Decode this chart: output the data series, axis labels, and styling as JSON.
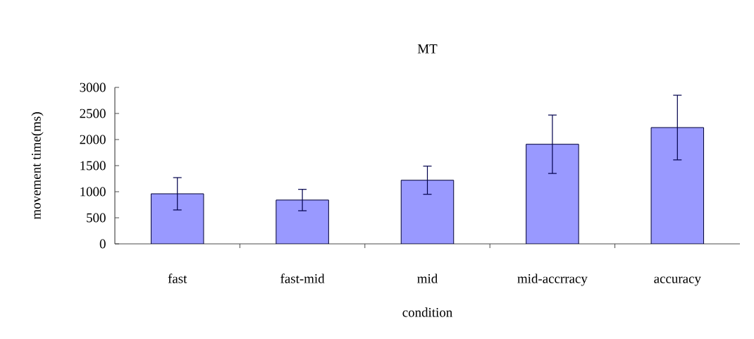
{
  "chart_data": {
    "type": "bar",
    "title": "MT",
    "xlabel": "condition",
    "ylabel": "movement time(ms)",
    "categories": [
      "fast",
      "fast-mid",
      "mid",
      "mid-accrracy",
      "accuracy"
    ],
    "values": [
      960,
      840,
      1220,
      1910,
      2230
    ],
    "errors": [
      310,
      205,
      270,
      560,
      620
    ],
    "color": "#9999ff",
    "ylim": [
      0,
      3000
    ],
    "yticks": [
      0,
      500,
      1000,
      1500,
      2000,
      2500,
      3000
    ],
    "grid": false
  }
}
